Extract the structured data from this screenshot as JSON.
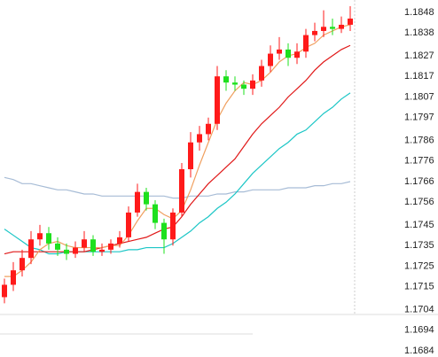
{
  "chart_data": {
    "type": "candlestick",
    "ylim": [
      1.1681,
      1.1854
    ],
    "yticks": [
      1.1848,
      1.1838,
      1.1827,
      1.1817,
      1.1807,
      1.1797,
      1.1786,
      1.1776,
      1.1766,
      1.1756,
      1.1745,
      1.1735,
      1.1725,
      1.1715,
      1.1704,
      1.1694,
      1.1684
    ],
    "up_color": "#ff1a1a",
    "down_color": "#1ee01e",
    "open": [
      1.171,
      1.1716,
      1.1723,
      1.1729,
      1.1738,
      1.1741,
      1.1736,
      1.1733,
      1.1731,
      1.1734,
      1.1738,
      1.1732,
      1.1733,
      1.1736,
      1.1739,
      1.1751,
      1.1761,
      1.1755,
      1.1746,
      1.1738,
      1.1751,
      1.1772,
      1.1785,
      1.1789,
      1.1794,
      1.1817,
      1.1814,
      1.1813,
      1.1811,
      1.1815,
      1.1822,
      1.1828,
      1.183,
      1.1826,
      1.1829,
      1.1837,
      1.1839,
      1.1841,
      1.184,
      1.1842
    ],
    "high": [
      1.1719,
      1.1727,
      1.1733,
      1.1742,
      1.1745,
      1.1744,
      1.1739,
      1.1736,
      1.1737,
      1.1742,
      1.174,
      1.1736,
      1.1738,
      1.1742,
      1.1754,
      1.1765,
      1.1763,
      1.1757,
      1.1748,
      1.1753,
      1.1775,
      1.179,
      1.1793,
      1.1797,
      1.1822,
      1.182,
      1.1817,
      1.1815,
      1.1818,
      1.1825,
      1.1832,
      1.1836,
      1.1833,
      1.1833,
      1.184,
      1.1843,
      1.1849,
      1.1845,
      1.1846,
      1.1851
    ],
    "low": [
      1.1707,
      1.1713,
      1.172,
      1.1726,
      1.1735,
      1.1733,
      1.173,
      1.1728,
      1.1729,
      1.1732,
      1.173,
      1.173,
      1.1731,
      1.1734,
      1.1737,
      1.1749,
      1.1752,
      1.1743,
      1.1731,
      1.1735,
      1.1749,
      1.1768,
      1.1781,
      1.1786,
      1.1791,
      1.181,
      1.181,
      1.1808,
      1.1808,
      1.1812,
      1.1819,
      1.1825,
      1.1822,
      1.1823,
      1.1826,
      1.1834,
      1.1836,
      1.1837,
      1.1838,
      1.1839
    ],
    "close": [
      1.1716,
      1.1723,
      1.1729,
      1.1738,
      1.1741,
      1.1736,
      1.1733,
      1.1731,
      1.1734,
      1.1738,
      1.1732,
      1.1733,
      1.1736,
      1.1739,
      1.1751,
      1.1761,
      1.1755,
      1.1746,
      1.1738,
      1.1751,
      1.1772,
      1.1785,
      1.1789,
      1.1794,
      1.1817,
      1.1814,
      1.1813,
      1.1811,
      1.1815,
      1.1822,
      1.1828,
      1.183,
      1.1826,
      1.1829,
      1.1837,
      1.1839,
      1.1841,
      1.184,
      1.1842,
      1.1845
    ],
    "series": [
      {
        "color": "#a7bcd6",
        "values": [
          1.1768,
          1.1767,
          1.1765,
          1.1765,
          1.1764,
          1.1763,
          1.1762,
          1.1762,
          1.1761,
          1.176,
          1.176,
          1.1759,
          1.1759,
          1.1759,
          1.1759,
          1.1759,
          1.1759,
          1.1759,
          1.1759,
          1.1758,
          1.1758,
          1.1759,
          1.1759,
          1.1759,
          1.176,
          1.176,
          1.1761,
          1.1761,
          1.1762,
          1.1762,
          1.1762,
          1.1762,
          1.1763,
          1.1763,
          1.1763,
          1.1764,
          1.1764,
          1.1765,
          1.1765,
          1.1766
        ]
      },
      {
        "color": "#1cc6c6",
        "values": [
          1.1743,
          1.174,
          1.1737,
          1.1734,
          1.1733,
          1.1731,
          1.1731,
          1.1732,
          1.1732,
          1.1732,
          1.1732,
          1.1732,
          1.1732,
          1.1732,
          1.1733,
          1.1733,
          1.1734,
          1.1734,
          1.1734,
          1.1736,
          1.1739,
          1.1742,
          1.1746,
          1.1749,
          1.1753,
          1.1756,
          1.176,
          1.1765,
          1.177,
          1.1774,
          1.1778,
          1.1782,
          1.1785,
          1.1789,
          1.1791,
          1.1795,
          1.1799,
          1.1802,
          1.1806,
          1.1809
        ]
      },
      {
        "color": "#e01818",
        "values": [
          1.1731,
          1.1732,
          1.1732,
          1.1732,
          1.1732,
          1.1732,
          1.1732,
          1.1732,
          1.1732,
          1.1732,
          1.1733,
          1.1734,
          1.1735,
          1.1736,
          1.1737,
          1.1738,
          1.1739,
          1.1741,
          1.1743,
          1.1744,
          1.1749,
          1.1755,
          1.176,
          1.1765,
          1.1769,
          1.1773,
          1.1777,
          1.1783,
          1.1789,
          1.1794,
          1.1798,
          1.1802,
          1.1807,
          1.1811,
          1.1815,
          1.182,
          1.1824,
          1.1827,
          1.183,
          1.1832
        ]
      },
      {
        "color": "#f0a060",
        "values": [
          1.172,
          1.172,
          1.1723,
          1.1727,
          1.1733,
          1.1736,
          1.1737,
          1.1735,
          1.1734,
          1.1734,
          1.1734,
          1.1734,
          1.1735,
          1.1735,
          1.174,
          1.1747,
          1.1753,
          1.1753,
          1.175,
          1.1748,
          1.1752,
          1.1762,
          1.1774,
          1.1785,
          1.1796,
          1.1804,
          1.181,
          1.1814,
          1.1813,
          1.1815,
          1.1819,
          1.1824,
          1.1827,
          1.1828,
          1.1831,
          1.1833,
          1.1837,
          1.1839,
          1.1841,
          1.1842
        ]
      }
    ]
  }
}
